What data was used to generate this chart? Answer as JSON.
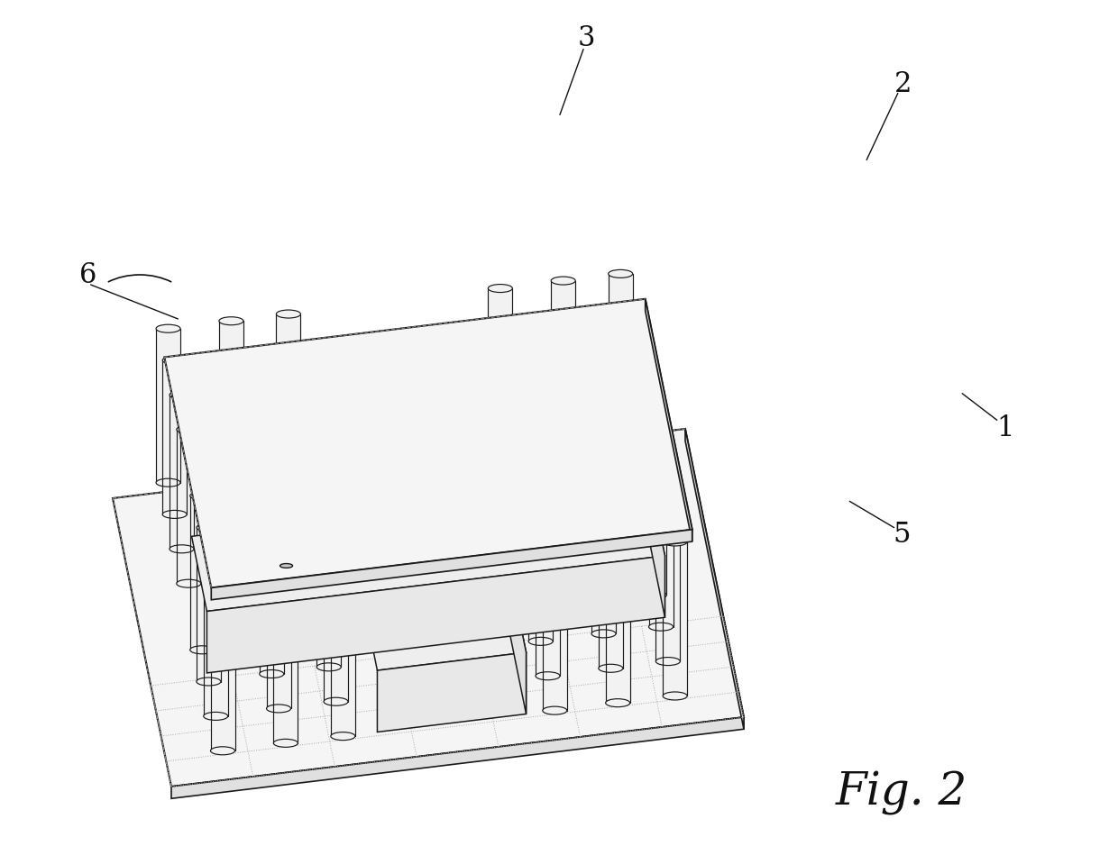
{
  "fig_label": "Fig. 2",
  "background_color": "#ffffff",
  "line_color": "#1a1a1a",
  "plate_fill": "#f5f5f5",
  "plate_edge": "#1a1a1a",
  "cyl_fill": "#f0f0f0",
  "cyl_edge": "#1a1a1a",
  "figsize": [
    12.4,
    9.49
  ],
  "dpi": 100,
  "label_fontsize": 22,
  "figlabel_fontsize": 36
}
